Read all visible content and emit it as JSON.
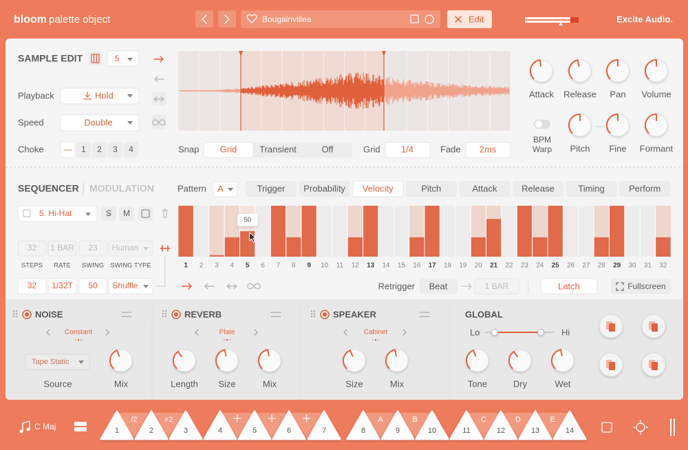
{
  "header": {
    "brand": "bloom",
    "product": "palette object",
    "preset": "Bougainvillea",
    "edit": "Edit",
    "company": "Excite Audio."
  },
  "sample_edit": {
    "title": "SAMPLE EDIT",
    "slot": "5",
    "playback_label": "Playback",
    "playback": "Hold",
    "speed_label": "Speed",
    "speed": "Double",
    "choke_label": "Choke",
    "choke_options": [
      "—",
      "1",
      "2",
      "3",
      "4"
    ],
    "choke_active": 0,
    "snap_label": "Snap",
    "snap_options": [
      "Grid",
      "Transient",
      "Off"
    ],
    "snap_active": 0,
    "grid_label": "Grid",
    "grid": "1/4",
    "fade_label": "Fade",
    "fade": "2ms",
    "knobs": [
      "Attack",
      "Release",
      "Pan",
      "Volume",
      "Pitch",
      "Fine",
      "Formant"
    ],
    "bpm_warp": "BPM Warp"
  },
  "sequencer": {
    "title": "SEQUENCER",
    "modulation": "MODULATION",
    "pattern_label": "Pattern",
    "pattern": "A",
    "tabs": [
      "Trigger",
      "Probability",
      "Velocity",
      "Pitch",
      "Attack",
      "Release",
      "Timing",
      "Perform"
    ],
    "active_tab": 2,
    "track": "5. Hi-Hat",
    "solo": "S",
    "mute": "M",
    "placeholders": [
      "32",
      "1 BAR",
      "23",
      "Human"
    ],
    "param_labels": [
      "STEPS",
      "RATE",
      "SWING",
      "SWING TYPE"
    ],
    "params": [
      "32",
      "1/32T",
      "50",
      "Shuffle"
    ],
    "steps": [
      1,
      2,
      3,
      4,
      5,
      6,
      7,
      8,
      9,
      10,
      11,
      12,
      13,
      14,
      15,
      16,
      17,
      18,
      19,
      20,
      21,
      22,
      23,
      24,
      25,
      26,
      27,
      28,
      29,
      30,
      31,
      32
    ],
    "velocity": [
      100,
      0,
      3,
      38,
      50,
      0,
      100,
      38,
      100,
      0,
      0,
      38,
      100,
      0,
      0,
      38,
      100,
      0,
      0,
      38,
      74,
      0,
      100,
      38,
      100,
      0,
      0,
      38,
      100,
      0,
      0,
      38
    ],
    "ylim": [
      0,
      100
    ],
    "hover_step": 4,
    "retrigger_label": "Retrigger",
    "retrigger": "Beat",
    "retrigger_length": "1 BAR",
    "latch": "Latch",
    "fullscreen": "Fullscreen"
  },
  "effects": [
    {
      "name": "NOISE",
      "mode": "Constant",
      "source": "Tape Static",
      "labels": [
        "Source",
        "Mix"
      ]
    },
    {
      "name": "REVERB",
      "mode": "Plate",
      "labels": [
        "Length",
        "Size",
        "Mix"
      ]
    },
    {
      "name": "SPEAKER",
      "mode": "Cabinet",
      "labels": [
        "Size",
        "Mix"
      ]
    }
  ],
  "global": {
    "name": "GLOBAL",
    "lo": "Lo",
    "hi": "Hi",
    "labels": [
      "Tone",
      "Dry",
      "Wet"
    ]
  },
  "footer": {
    "scale": "C Maj",
    "keys": [
      1,
      2,
      3,
      4,
      5,
      6,
      7,
      8,
      9,
      10,
      11,
      12,
      13,
      14
    ],
    "modifiers": [
      "/2",
      "×2",
      null,
      null,
      null,
      null,
      null,
      "A",
      "B",
      null,
      "C",
      "D",
      "E"
    ]
  }
}
